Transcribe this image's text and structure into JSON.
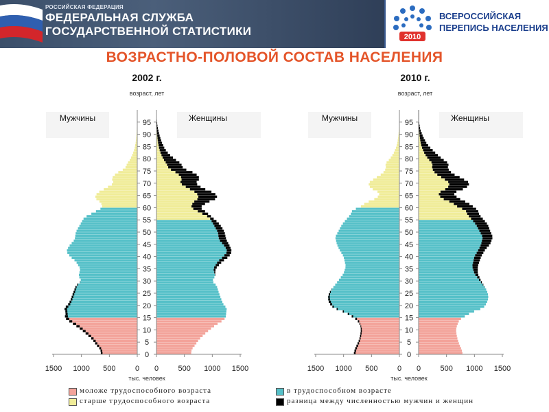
{
  "header": {
    "small": "РОССИЙСКАЯ ФЕДЕРАЦИЯ",
    "line1": "ФЕДЕРАЛЬНАЯ СЛУЖБА",
    "line2": "ГОСУДАРСТВЕННОЙ СТАТИСТИКИ",
    "census_line1": "ВСЕРОССИЙСКАЯ",
    "census_line2": "ПЕРЕПИСЬ НАСЕЛЕНИЯ",
    "census_year": "2010"
  },
  "title": "ВОЗРАСТНО-ПОЛОВОЙ СОСТАВ НАСЕЛЕНИЯ",
  "colors": {
    "young": "#f3a39a",
    "working": "#55c0c8",
    "old": "#f0ec98",
    "difference": "#000000"
  },
  "legend": {
    "young": "моложе трудоспособного возраста",
    "working": "в трудоспособном возрасте",
    "old": "старше трудоспособного возраста",
    "difference": "разница между численностью мужчин и женщин"
  },
  "chart_data": [
    {
      "type": "bar",
      "title": "2002 г.",
      "ylabel": "возраст, лет",
      "xlabel": "тыс. человек",
      "left_label": "Мужчины",
      "right_label": "Женщины",
      "y_ticks": [
        "0",
        "5",
        "10",
        "15",
        "20",
        "25",
        "30",
        "35",
        "40",
        "45",
        "50",
        "55",
        "60",
        "65",
        "70",
        "75",
        "80",
        "85",
        "90",
        "95"
      ],
      "x_ticks": [
        "1500",
        "1000",
        "500",
        "0",
        "0",
        "500",
        "1000",
        "1500"
      ],
      "xlim": [
        0,
        1500
      ],
      "ylim": [
        0,
        100
      ],
      "male_points": [
        [
          0,
          650
        ],
        [
          2,
          660
        ],
        [
          4,
          740
        ],
        [
          6,
          800
        ],
        [
          8,
          900
        ],
        [
          10,
          1000
        ],
        [
          12,
          1120
        ],
        [
          14,
          1250
        ],
        [
          15,
          1300
        ],
        [
          17,
          1280
        ],
        [
          19,
          1310
        ],
        [
          20,
          1250
        ],
        [
          22,
          1200
        ],
        [
          25,
          1150
        ],
        [
          28,
          1100
        ],
        [
          30,
          1000
        ],
        [
          32,
          1050
        ],
        [
          35,
          1020
        ],
        [
          38,
          1100
        ],
        [
          40,
          1200
        ],
        [
          42,
          1270
        ],
        [
          44,
          1230
        ],
        [
          47,
          1120
        ],
        [
          50,
          1100
        ],
        [
          52,
          1050
        ],
        [
          54,
          1000
        ],
        [
          56,
          950
        ],
        [
          58,
          780
        ],
        [
          60,
          620
        ],
        [
          62,
          650
        ],
        [
          64,
          760
        ],
        [
          66,
          720
        ],
        [
          68,
          560
        ],
        [
          70,
          420
        ],
        [
          72,
          460
        ],
        [
          74,
          380
        ],
        [
          76,
          220
        ],
        [
          78,
          180
        ],
        [
          80,
          120
        ],
        [
          82,
          80
        ],
        [
          84,
          50
        ],
        [
          87,
          25
        ],
        [
          90,
          12
        ],
        [
          93,
          6
        ],
        [
          96,
          2
        ]
      ],
      "female_points": [
        [
          0,
          620
        ],
        [
          2,
          630
        ],
        [
          4,
          700
        ],
        [
          6,
          760
        ],
        [
          8,
          850
        ],
        [
          10,
          950
        ],
        [
          12,
          1060
        ],
        [
          14,
          1200
        ],
        [
          15,
          1240
        ],
        [
          17,
          1250
        ],
        [
          19,
          1260
        ],
        [
          20,
          1210
        ],
        [
          22,
          1170
        ],
        [
          25,
          1120
        ],
        [
          28,
          1080
        ],
        [
          30,
          1000
        ],
        [
          32,
          1050
        ],
        [
          35,
          1060
        ],
        [
          38,
          1180
        ],
        [
          40,
          1300
        ],
        [
          42,
          1350
        ],
        [
          44,
          1320
        ],
        [
          47,
          1250
        ],
        [
          50,
          1220
        ],
        [
          52,
          1170
        ],
        [
          54,
          1100
        ],
        [
          56,
          1000
        ],
        [
          58,
          900
        ],
        [
          60,
          780
        ],
        [
          62,
          900
        ],
        [
          64,
          1100
        ],
        [
          66,
          1040
        ],
        [
          68,
          820
        ],
        [
          70,
          700
        ],
        [
          72,
          780
        ],
        [
          74,
          700
        ],
        [
          76,
          480
        ],
        [
          78,
          440
        ],
        [
          80,
          320
        ],
        [
          82,
          220
        ],
        [
          84,
          150
        ],
        [
          87,
          90
        ],
        [
          90,
          50
        ],
        [
          93,
          20
        ],
        [
          96,
          6
        ]
      ],
      "young_max_age": 15,
      "working_max_age_male": 59,
      "working_max_age_female": 54
    },
    {
      "type": "bar",
      "title": "2010 г.",
      "ylabel": "возраст, лет",
      "xlabel": "тыс. человек",
      "left_label": "Мужчины",
      "right_label": "Женщины",
      "y_ticks": [
        "0",
        "5",
        "10",
        "15",
        "20",
        "25",
        "30",
        "35",
        "40",
        "45",
        "50",
        "55",
        "60",
        "65",
        "70",
        "75",
        "80",
        "85",
        "90",
        "95"
      ],
      "x_ticks": [
        "1500",
        "1000",
        "500",
        "0",
        "0",
        "500",
        "1000",
        "1500"
      ],
      "xlim": [
        0,
        1500
      ],
      "ylim": [
        0,
        100
      ],
      "male_points": [
        [
          0,
          820
        ],
        [
          2,
          800
        ],
        [
          4,
          760
        ],
        [
          6,
          720
        ],
        [
          8,
          700
        ],
        [
          10,
          690
        ],
        [
          12,
          700
        ],
        [
          14,
          760
        ],
        [
          15,
          820
        ],
        [
          17,
          960
        ],
        [
          19,
          1180
        ],
        [
          21,
          1260
        ],
        [
          23,
          1280
        ],
        [
          25,
          1260
        ],
        [
          27,
          1200
        ],
        [
          30,
          1100
        ],
        [
          33,
          1000
        ],
        [
          36,
          960
        ],
        [
          40,
          1000
        ],
        [
          43,
          1080
        ],
        [
          45,
          1120
        ],
        [
          48,
          1150
        ],
        [
          50,
          1100
        ],
        [
          53,
          1030
        ],
        [
          55,
          960
        ],
        [
          57,
          880
        ],
        [
          59,
          840
        ],
        [
          60,
          720
        ],
        [
          62,
          600
        ],
        [
          64,
          400
        ],
        [
          66,
          350
        ],
        [
          68,
          520
        ],
        [
          70,
          560
        ],
        [
          72,
          440
        ],
        [
          74,
          300
        ],
        [
          76,
          240
        ],
        [
          78,
          250
        ],
        [
          80,
          170
        ],
        [
          82,
          110
        ],
        [
          84,
          70
        ],
        [
          86,
          40
        ],
        [
          89,
          20
        ],
        [
          92,
          8
        ],
        [
          95,
          3
        ]
      ],
      "female_points": [
        [
          0,
          790
        ],
        [
          2,
          770
        ],
        [
          4,
          730
        ],
        [
          6,
          700
        ],
        [
          8,
          680
        ],
        [
          10,
          670
        ],
        [
          12,
          690
        ],
        [
          14,
          730
        ],
        [
          15,
          790
        ],
        [
          17,
          940
        ],
        [
          19,
          1160
        ],
        [
          21,
          1220
        ],
        [
          23,
          1250
        ],
        [
          25,
          1240
        ],
        [
          27,
          1200
        ],
        [
          30,
          1120
        ],
        [
          33,
          1060
        ],
        [
          36,
          1060
        ],
        [
          40,
          1120
        ],
        [
          43,
          1200
        ],
        [
          45,
          1280
        ],
        [
          48,
          1330
        ],
        [
          50,
          1290
        ],
        [
          53,
          1240
        ],
        [
          55,
          1170
        ],
        [
          57,
          1090
        ],
        [
          59,
          1060
        ],
        [
          60,
          1000
        ],
        [
          62,
          880
        ],
        [
          64,
          700
        ],
        [
          66,
          620
        ],
        [
          68,
          850
        ],
        [
          70,
          920
        ],
        [
          72,
          780
        ],
        [
          74,
          600
        ],
        [
          76,
          520
        ],
        [
          78,
          540
        ],
        [
          80,
          420
        ],
        [
          82,
          320
        ],
        [
          84,
          230
        ],
        [
          86,
          150
        ],
        [
          89,
          80
        ],
        [
          92,
          30
        ],
        [
          95,
          8
        ]
      ],
      "young_max_age": 15,
      "working_max_age_male": 59,
      "working_max_age_female": 54
    }
  ]
}
